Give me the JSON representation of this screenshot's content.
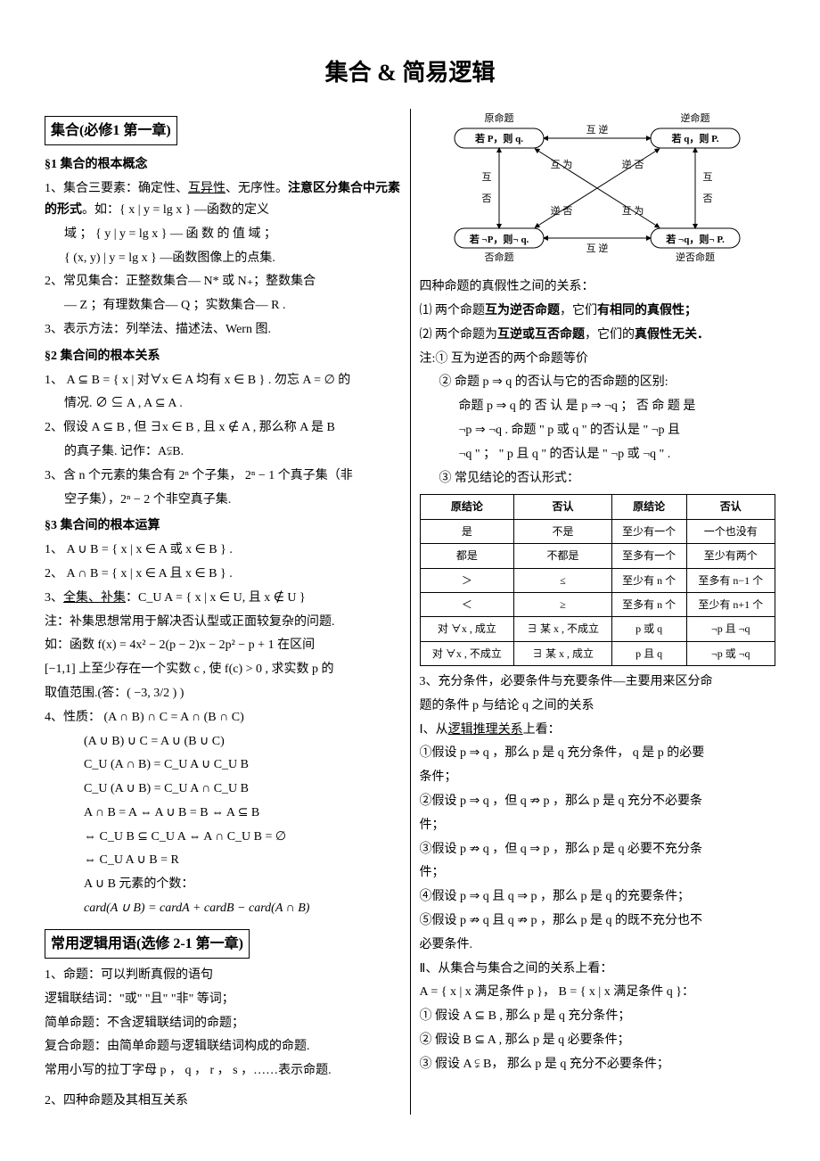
{
  "title": "集合 & 简易逻辑",
  "left": {
    "box1": "集合(必修1 第一章)",
    "s1_head": "§1  集合的根本概念",
    "s1_1a": "1、集合三要素：确定性、",
    "s1_1_uniq": "互异性",
    "s1_1b": "、无序性。",
    "s1_1_bold": "注意区分集合中元素的形式",
    "s1_1c": "。如：{ x | y = lg x } —函数的定义",
    "s1_1d": "域 ； { y | y = lg x } — 函 数 的 值 域 ；",
    "s1_1e": "{ (x, y) | y = lg x } —函数图像上的点集.",
    "s1_2": "2、常见集合：正整数集合— N* 或 N₊；整数集合",
    "s1_2b": "— Z ；有理数集合— Q ；实数集合— R .",
    "s1_3": "3、表示方法：列举法、描述法、Wern 图.",
    "s2_head": "§2  集合间的根本关系",
    "s2_1": "1、 A ⊆ B = { x | 对∀x ∈ A 均有 x ∈ B } . 勿忘 A = ∅ 的",
    "s2_1b": "情况. ∅ ⊆ A ,  A ⊆ A .",
    "s2_2": "2、假设 A ⊆ B , 但 ∃x ∈ B , 且 x ∉ A , 那么称 A 是 B",
    "s2_2b": "的真子集. 记作：A⫋B.",
    "s2_3": "3、含 n 个元素的集合有 2ⁿ 个子集， 2ⁿ − 1 个真子集（非",
    "s2_3b": "空子集），2ⁿ − 2 个非空真子集.",
    "s3_head": "§3  集合间的根本运算",
    "s3_1": "1、 A ∪ B = { x | x ∈ A 或 x ∈ B } .",
    "s3_2": "2、 A ∩ B = { x | x ∈ A 且 x ∈ B } .",
    "s3_3a": "3、",
    "s3_3u": "全集、补集",
    "s3_3b": "：C_U A = { x | x ∈ U, 且 x ∉ U }",
    "s3_note": "注：补集思想常用于解决否认型或正面较复杂的问题.",
    "s3_eg1": "如：函数 f(x) = 4x² − 2(p − 2)x − 2p² − p + 1 在区间",
    "s3_eg2": "[−1,1] 上至少存在一个实数 c , 使 f(c) > 0 , 求实数 p 的",
    "s3_eg3": "取值范围.(答：( −3, 3/2 ) )",
    "s3_4": "4、性质： (A ∩ B) ∩ C = A ∩ (B ∩ C)",
    "s3_4b": "(A ∪ B) ∪ C = A ∪ (B ∪ C)",
    "s3_4c": "C_U (A ∩ B) = C_U A ∪ C_U B",
    "s3_4d": "C_U (A ∪ B) = C_U A ∩ C_U B",
    "s3_4e": "A ∩ B = A ⇔ A ∪ B = B ⇔ A ⊆ B",
    "s3_4f": "⇔ C_U B ⊆ C_U A ⇔ A ∩ C_U B = ∅",
    "s3_4g": "⇔ C_U A ∪ B = R",
    "s3_4h": "A ∪ B 元素的个数：",
    "s3_4i": "card(A ∪ B) = cardA + cardB − card(A ∩ B)",
    "box2": "常用逻辑用语(选修 2-1 第一章)",
    "l1": "1、命题：可以判断真假的语句",
    "l1b": "逻辑联结词：\"或\" \"且\" \"非\" 等词；",
    "l1c": "简单命题：不含逻辑联结词的命题；",
    "l1d": "复合命题：由简单命题与逻辑联结词构成的命题.",
    "l1e": "常用小写的拉丁字母 p ， q ， r ， s ，……表示命题.",
    "l2": "2、四种命题及其相互关系"
  },
  "right": {
    "diagram": {
      "topleft": {
        "title": "原命题",
        "body": "若 P，则 q."
      },
      "topright": {
        "title": "逆命题",
        "body": "若 q，则 P."
      },
      "botleft": {
        "title": "否命题",
        "body": "若 ¬P，则¬ q."
      },
      "botright": {
        "title": "逆否命题",
        "body": "若 ¬q，则¬ P."
      },
      "top_edge": "互  逆",
      "bot_edge": "互  逆",
      "left_edge_a": "互",
      "left_edge_b": "否",
      "right_edge_a": "互",
      "right_edge_b": "否",
      "diag1": "互 为",
      "diag2": "逆 否",
      "diag3": "逆 否",
      "diag4": "互 为"
    },
    "r1": "四种命题的真假性之间的关系：",
    "r2a": "⑴ 两个命题",
    "r2b": "互为逆否命题",
    "r2c": "，它们",
    "r2d": "有相同的真假性；",
    "r3a": "⑵ 两个命题为",
    "r3b": "互逆或互否命题",
    "r3c": "，它们的",
    "r3d": "真假性无关．",
    "r4": "注:① 互为逆否的两个命题等价",
    "r5": "② 命题 p ⇒ q 的否认与它的否命题的区别:",
    "r5b": "命题 p ⇒ q 的 否 认 是 p ⇒ ¬q ； 否 命 题 是",
    "r5c": "¬p ⇒ ¬q . 命题 \" p 或 q \" 的否认是 \" ¬p 且",
    "r5d": "¬q \" ； \" p 且 q \" 的否认是 \" ¬p 或 ¬q \" .",
    "r6": "③ 常见结论的否认形式：",
    "table": {
      "headers": [
        "原结论",
        "否认",
        "原结论",
        "否认"
      ],
      "rows": [
        [
          "是",
          "不是",
          "至少有一个",
          "一个也没有"
        ],
        [
          "都是",
          "不都是",
          "至多有一个",
          "至少有两个"
        ],
        [
          "＞",
          "≤",
          "至少有 n 个",
          "至多有 n−1 个"
        ],
        [
          "＜",
          "≥",
          "至多有 n 个",
          "至少有 n+1 个"
        ],
        [
          "对 ∀x , 成立",
          "∃ 某 x , 不成立",
          "p 或 q",
          "¬p 且 ¬q"
        ],
        [
          "对 ∀x , 不成立",
          "∃ 某 x , 成立",
          "p 且 q",
          "¬p 或 ¬q"
        ]
      ]
    },
    "r7": "3、充分条件，必要条件与充要条件—主要用来区分命",
    "r7b": "题的条件 p 与结论 q 之间的关系",
    "r8a": "Ⅰ、从",
    "r8u": "逻辑推理关系",
    "r8b": "上看：",
    "r9": "①假设 p ⇒ q ，那么 p 是 q 充分条件， q 是 p 的必要",
    "r9b": "条件；",
    "r10": "②假设 p ⇒ q ，但 q ⇏ p ，那么 p 是 q 充分不必要条",
    "r10b": "件；",
    "r11": "③假设 p ⇏ q ，但 q ⇒ p ，那么 p 是 q 必要不充分条",
    "r11b": "件；",
    "r12": "④假设 p ⇒ q 且 q ⇒ p ，那么 p 是 q 的充要条件；",
    "r13": "⑤假设 p ⇏ q 且 q ⇏ p ，那么 p 是 q 的既不充分也不",
    "r13b": "必要条件.",
    "r14": "Ⅱ、从集合与集合之间的关系上看：",
    "r15": "A = { x | x 满足条件 p }， B = { x | x 满足条件 q }：",
    "r16": "① 假设 A ⊆ B , 那么 p 是 q 充分条件；",
    "r17": "② 假设 B ⊆ A , 那么 p 是 q 必要条件；",
    "r18": "③ 假设 A ⫋ B， 那么 p 是 q 充分不必要条件；"
  }
}
